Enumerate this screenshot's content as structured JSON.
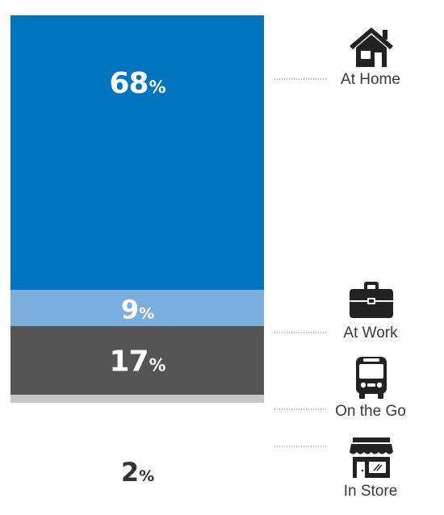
{
  "chart_data": {
    "type": "bar",
    "stacked": true,
    "categories": [
      "At Home",
      "At Work",
      "On the Go",
      "In Store"
    ],
    "values": [
      68,
      9,
      17,
      2
    ],
    "value_suffix": "%",
    "colors": [
      "#0075bf",
      "#7aaede",
      "#555555",
      "#c7c7c7"
    ],
    "label_colors": [
      "#ffffff",
      "#ffffff",
      "#ffffff",
      "#333333"
    ],
    "icons": [
      "house-icon",
      "briefcase-icon",
      "bus-icon",
      "store-icon"
    ],
    "title": "",
    "xlabel": "",
    "ylabel": "",
    "legend": "right"
  }
}
